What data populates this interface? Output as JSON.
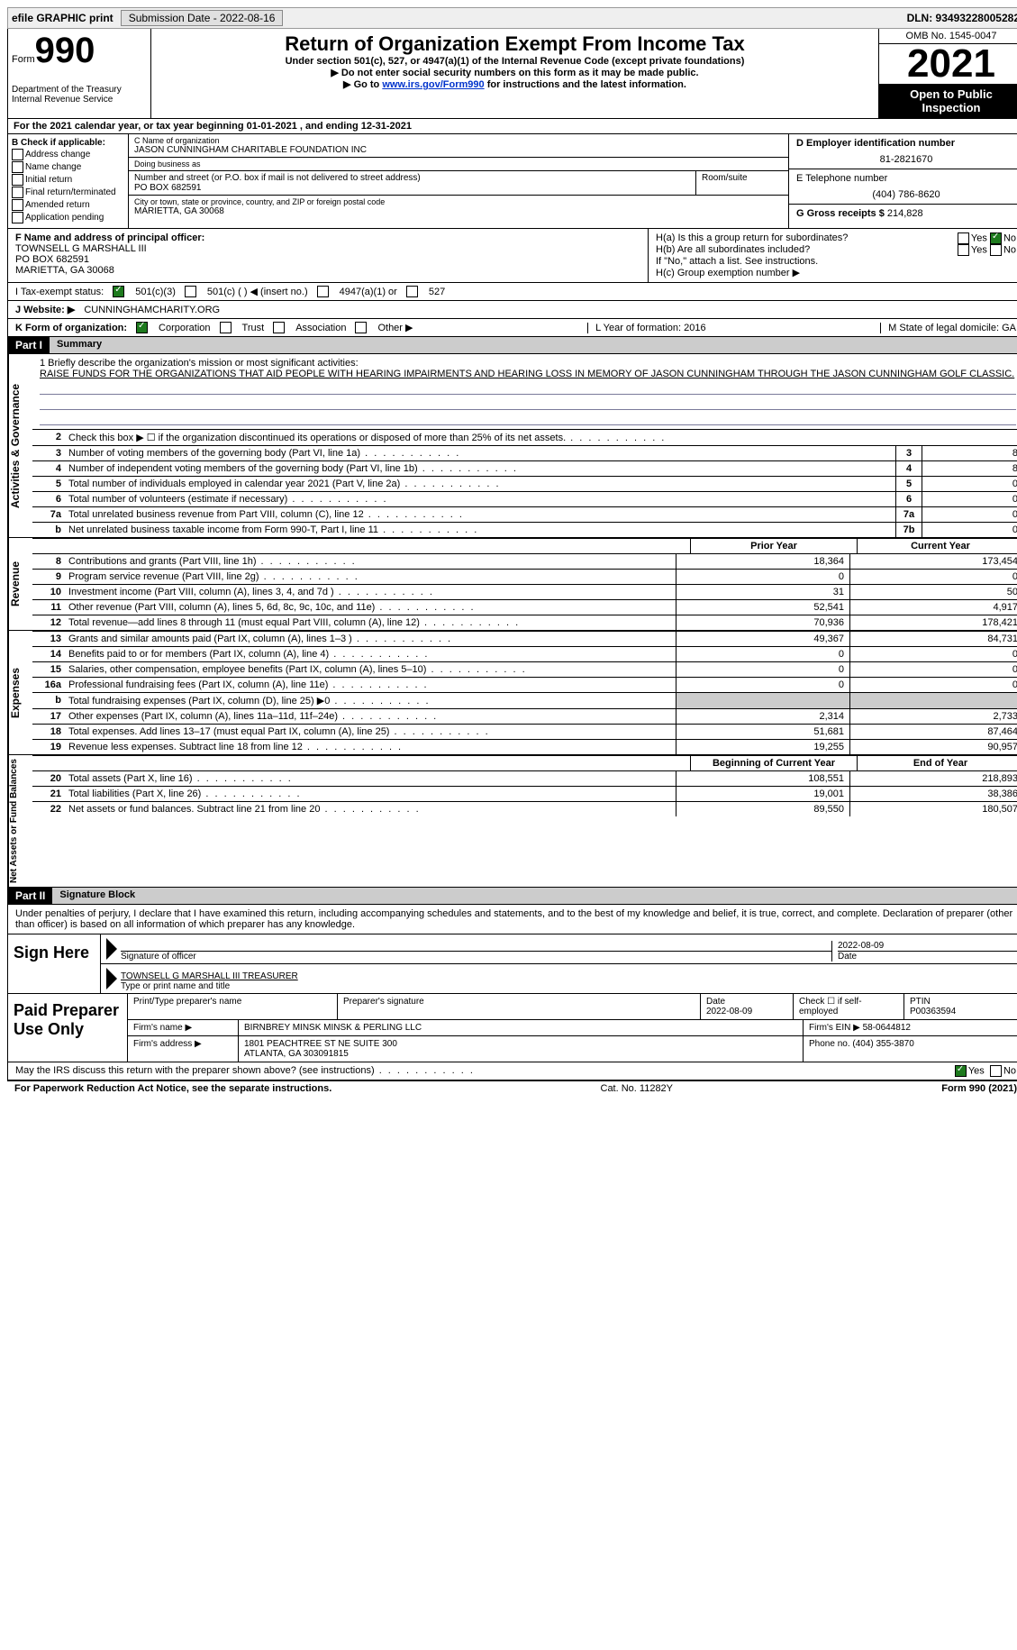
{
  "topbar": {
    "efile": "efile GRAPHIC print",
    "submission_label": "Submission Date - 2022-08-16",
    "dln": "DLN: 93493228005282"
  },
  "header": {
    "form_word": "Form",
    "form_num": "990",
    "title": "Return of Organization Exempt From Income Tax",
    "subtitle": "Under section 501(c), 527, or 4947(a)(1) of the Internal Revenue Code (except private foundations)",
    "note1": "Do not enter social security numbers on this form as it may be made public.",
    "note2_pre": "Go to ",
    "note2_link": "www.irs.gov/Form990",
    "note2_post": " for instructions and the latest information.",
    "dept": "Department of the Treasury\nInternal Revenue Service",
    "omb": "OMB No. 1545-0047",
    "year": "2021",
    "open": "Open to Public Inspection"
  },
  "line_a": "For the 2021 calendar year, or tax year beginning 01-01-2021    , and ending 12-31-2021",
  "box_b": {
    "label": "B Check if applicable:",
    "opts": [
      "Address change",
      "Name change",
      "Initial return",
      "Final return/terminated",
      "Amended return",
      "Application pending"
    ]
  },
  "box_c": {
    "name_lbl": "C Name of organization",
    "name": "JASON CUNNINGHAM CHARITABLE FOUNDATION INC",
    "dba_lbl": "Doing business as",
    "street_lbl": "Number and street (or P.O. box if mail is not delivered to street address)",
    "room_lbl": "Room/suite",
    "street": "PO BOX 682591",
    "city_lbl": "City or town, state or province, country, and ZIP or foreign postal code",
    "city": "MARIETTA, GA  30068"
  },
  "box_d": {
    "lbl": "D Employer identification number",
    "val": "81-2821670"
  },
  "box_e": {
    "lbl": "E Telephone number",
    "val": "(404) 786-8620"
  },
  "box_g": {
    "lbl": "G Gross receipts $",
    "val": "214,828"
  },
  "box_f": {
    "lbl": "F Name and address of principal officer:",
    "name": "TOWNSELL G MARSHALL III",
    "street": "PO BOX 682591",
    "city": "MARIETTA, GA  30068"
  },
  "box_h": {
    "a": "H(a)  Is this a group return for subordinates?",
    "b": "H(b)  Are all subordinates included?",
    "note": "If \"No,\" attach a list. See instructions.",
    "c": "H(c)  Group exemption number ▶"
  },
  "tax_status": {
    "lbl": "I   Tax-exempt status:",
    "o1": "501(c)(3)",
    "o2": "501(c) (  ) ◀ (insert no.)",
    "o3": "4947(a)(1) or",
    "o4": "527"
  },
  "website": {
    "lbl": "J   Website: ▶",
    "val": "CUNNINGHAMCHARITY.ORG"
  },
  "k_org": {
    "lbl": "K Form of organization:",
    "opts": [
      "Corporation",
      "Trust",
      "Association",
      "Other ▶"
    ],
    "l": "L Year of formation: 2016",
    "m": "M State of legal domicile: GA"
  },
  "part1": {
    "tag": "Part I",
    "title": "Summary"
  },
  "mission": {
    "lead": "1   Briefly describe the organization's mission or most significant activities:",
    "text": "RAISE FUNDS FOR THE ORGANIZATIONS THAT AID PEOPLE WITH HEARING IMPAIRMENTS AND HEARING LOSS IN MEMORY OF JASON CUNNINGHAM THROUGH THE JASON CUNNINGHAM GOLF CLASSIC."
  },
  "gov_rows": [
    {
      "n": "2",
      "d": "Check this box ▶ ☐ if the organization discontinued its operations or disposed of more than 25% of its net assets.",
      "box": "",
      "v": ""
    },
    {
      "n": "3",
      "d": "Number of voting members of the governing body (Part VI, line 1a)",
      "box": "3",
      "v": "8"
    },
    {
      "n": "4",
      "d": "Number of independent voting members of the governing body (Part VI, line 1b)",
      "box": "4",
      "v": "8"
    },
    {
      "n": "5",
      "d": "Total number of individuals employed in calendar year 2021 (Part V, line 2a)",
      "box": "5",
      "v": "0"
    },
    {
      "n": "6",
      "d": "Total number of volunteers (estimate if necessary)",
      "box": "6",
      "v": "0"
    },
    {
      "n": "7a",
      "d": "Total unrelated business revenue from Part VIII, column (C), line 12",
      "box": "7a",
      "v": "0"
    },
    {
      "n": "b",
      "d": "Net unrelated business taxable income from Form 990-T, Part I, line 11",
      "box": "7b",
      "v": "0"
    }
  ],
  "side_labels": {
    "gov": "Activities & Governance",
    "rev": "Revenue",
    "exp": "Expenses",
    "net": "Net Assets or Fund Balances"
  },
  "fin_hdr": {
    "prior": "Prior Year",
    "current": "Current Year"
  },
  "rev_rows": [
    {
      "n": "8",
      "d": "Contributions and grants (Part VIII, line 1h)",
      "p": "18,364",
      "c": "173,454"
    },
    {
      "n": "9",
      "d": "Program service revenue (Part VIII, line 2g)",
      "p": "0",
      "c": "0"
    },
    {
      "n": "10",
      "d": "Investment income (Part VIII, column (A), lines 3, 4, and 7d )",
      "p": "31",
      "c": "50"
    },
    {
      "n": "11",
      "d": "Other revenue (Part VIII, column (A), lines 5, 6d, 8c, 9c, 10c, and 11e)",
      "p": "52,541",
      "c": "4,917"
    },
    {
      "n": "12",
      "d": "Total revenue—add lines 8 through 11 (must equal Part VIII, column (A), line 12)",
      "p": "70,936",
      "c": "178,421"
    }
  ],
  "exp_rows": [
    {
      "n": "13",
      "d": "Grants and similar amounts paid (Part IX, column (A), lines 1–3 )",
      "p": "49,367",
      "c": "84,731"
    },
    {
      "n": "14",
      "d": "Benefits paid to or for members (Part IX, column (A), line 4)",
      "p": "0",
      "c": "0"
    },
    {
      "n": "15",
      "d": "Salaries, other compensation, employee benefits (Part IX, column (A), lines 5–10)",
      "p": "0",
      "c": "0"
    },
    {
      "n": "16a",
      "d": "Professional fundraising fees (Part IX, column (A), line 11e)",
      "p": "0",
      "c": "0"
    },
    {
      "n": "b",
      "d": "Total fundraising expenses (Part IX, column (D), line 25) ▶0",
      "p": "",
      "c": "",
      "grey": true
    },
    {
      "n": "17",
      "d": "Other expenses (Part IX, column (A), lines 11a–11d, 11f–24e)",
      "p": "2,314",
      "c": "2,733"
    },
    {
      "n": "18",
      "d": "Total expenses. Add lines 13–17 (must equal Part IX, column (A), line 25)",
      "p": "51,681",
      "c": "87,464"
    },
    {
      "n": "19",
      "d": "Revenue less expenses. Subtract line 18 from line 12",
      "p": "19,255",
      "c": "90,957"
    }
  ],
  "net_hdr": {
    "begin": "Beginning of Current Year",
    "end": "End of Year"
  },
  "net_rows": [
    {
      "n": "20",
      "d": "Total assets (Part X, line 16)",
      "p": "108,551",
      "c": "218,893"
    },
    {
      "n": "21",
      "d": "Total liabilities (Part X, line 26)",
      "p": "19,001",
      "c": "38,386"
    },
    {
      "n": "22",
      "d": "Net assets or fund balances. Subtract line 21 from line 20",
      "p": "89,550",
      "c": "180,507"
    }
  ],
  "part2": {
    "tag": "Part II",
    "title": "Signature Block"
  },
  "sig_intro": "Under penalties of perjury, I declare that I have examined this return, including accompanying schedules and statements, and to the best of my knowledge and belief, it is true, correct, and complete. Declaration of preparer (other than officer) is based on all information of which preparer has any knowledge.",
  "sign": {
    "here": "Sign Here",
    "sig_lbl": "Signature of officer",
    "date": "2022-08-09",
    "date_lbl": "Date",
    "name": "TOWNSELL G MARSHALL III  TREASURER",
    "name_lbl": "Type or print name and title"
  },
  "paid": {
    "here": "Paid Preparer Use Only",
    "r1": {
      "c1": "Print/Type preparer's name",
      "c2": "Preparer's signature",
      "c3": "Date\n2022-08-09",
      "c4": "Check ☐ if self-employed",
      "c5": "PTIN\nP00363594"
    },
    "r2": {
      "c1": "Firm's name    ▶",
      "c2": "BIRNBREY MINSK MINSK & PERLING LLC",
      "c3": "Firm's EIN ▶ 58-0644812"
    },
    "r3": {
      "c1": "Firm's address ▶",
      "c2": "1801 PEACHTREE ST NE SUITE 300\nATLANTA, GA  303091815",
      "c3": "Phone no. (404) 355-3870"
    }
  },
  "discuss": "May the IRS discuss this return with the preparer shown above? (see instructions)",
  "yes": "Yes",
  "no": "No",
  "footer": {
    "left": "For Paperwork Reduction Act Notice, see the separate instructions.",
    "mid": "Cat. No. 11282Y",
    "right": "Form 990 (2021)"
  }
}
